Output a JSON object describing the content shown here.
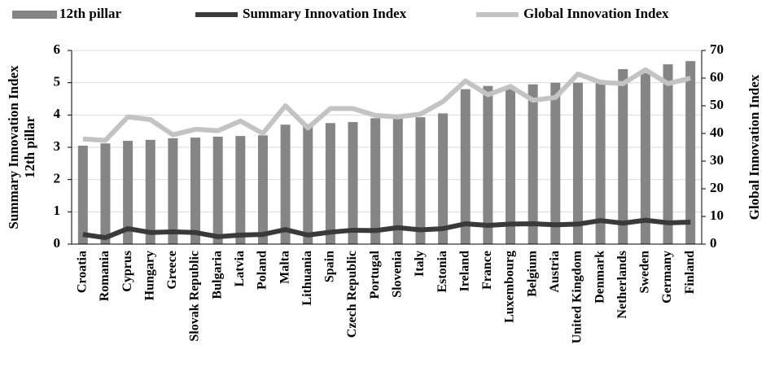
{
  "chart_data": {
    "type": "bar",
    "ylabel": [
      "Summary Innovation Index",
      "12th pillar"
    ],
    "y2label": "Global Innovation Index",
    "categories": [
      "Croatia",
      "Romania",
      "Cyprus",
      "Hungary",
      "Greece",
      "Slovak Republic",
      "Bulgaria",
      "Latvia",
      "Poland",
      "Malta",
      "Lithuania",
      "Spain",
      "Czech Republic",
      "Portugal",
      "Slovenia",
      "Italy",
      "Estonia",
      "Ireland",
      "France",
      "Luxembourg",
      "Belgium",
      "Austria",
      "United Kingdom",
      "Denmark",
      "Netherlands",
      "Sweden",
      "Germany",
      "Finland"
    ],
    "series": [
      {
        "name": "12th pillar",
        "type": "bar",
        "color": "#858585",
        "axis": "y",
        "values": [
          3.05,
          3.12,
          3.2,
          3.23,
          3.28,
          3.3,
          3.33,
          3.35,
          3.37,
          3.7,
          3.72,
          3.75,
          3.78,
          3.9,
          3.92,
          3.93,
          4.05,
          4.8,
          4.9,
          4.9,
          4.95,
          5.0,
          5.0,
          5.05,
          5.42,
          5.3,
          5.57,
          5.67
        ]
      },
      {
        "name": "Summary Innovation Index",
        "type": "line",
        "color": "#3a3a3a",
        "axis": "y",
        "values": [
          0.3,
          0.2,
          0.48,
          0.36,
          0.38,
          0.36,
          0.23,
          0.28,
          0.3,
          0.45,
          0.28,
          0.37,
          0.43,
          0.42,
          0.51,
          0.44,
          0.48,
          0.63,
          0.58,
          0.62,
          0.63,
          0.6,
          0.62,
          0.73,
          0.65,
          0.74,
          0.66,
          0.68
        ]
      },
      {
        "name": "Global Innovation Index",
        "type": "line",
        "color": "#c3c3c3",
        "axis": "y2",
        "values": [
          38,
          37.5,
          46,
          45,
          39.5,
          41.5,
          41,
          44.5,
          40,
          50,
          42,
          49,
          49,
          46.5,
          46,
          47,
          51.5,
          59,
          54,
          57,
          52,
          53,
          61.5,
          58.5,
          58,
          63,
          58,
          60
        ]
      }
    ],
    "ylim": [
      0,
      6
    ],
    "yticks": [
      0,
      1,
      2,
      3,
      4,
      5,
      6
    ],
    "y2lim": [
      0,
      70
    ],
    "y2ticks": [
      0,
      10,
      20,
      30,
      40,
      50,
      60,
      70
    ],
    "grid": true
  }
}
